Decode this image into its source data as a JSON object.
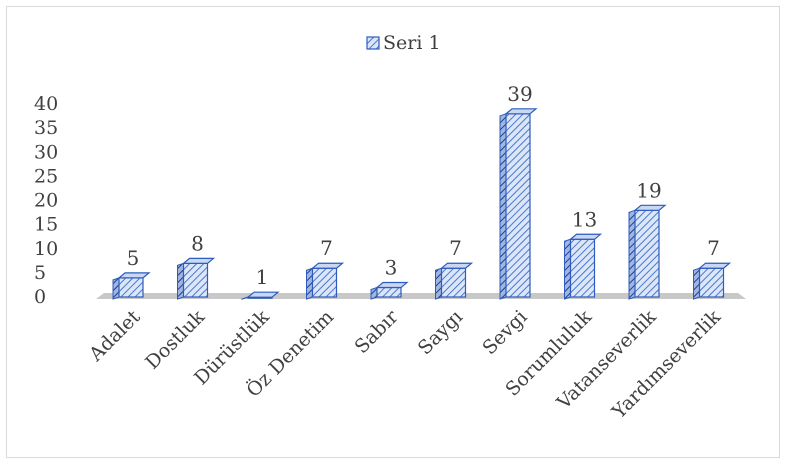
{
  "chart_data": {
    "type": "bar",
    "title": "",
    "xlabel": "",
    "ylabel": "",
    "categories": [
      "Adalet",
      "Dostluk",
      "Dürüstlük",
      "Öz Denetim",
      "Sabır",
      "Saygı",
      "Sevgi",
      "Sorumluluk",
      "Vatanseverlik",
      "Yardımseverlik"
    ],
    "series": [
      {
        "name": "Seri 1",
        "values": [
          5,
          8,
          1,
          7,
          3,
          7,
          39,
          13,
          19,
          7
        ]
      }
    ],
    "data_labels": [
      "5",
      "8",
      "1",
      "7",
      "3",
      "7",
      "39",
      "13",
      "19",
      "7"
    ],
    "ylim": [
      0,
      40
    ],
    "yticks": [
      "0",
      "5",
      "10",
      "15",
      "20",
      "25",
      "30",
      "35",
      "40"
    ],
    "grid": false,
    "legend_position": "top-center",
    "style": "3d-column-hatched",
    "colors": {
      "bar_fill": "#c9d8f2",
      "bar_edge": "#2e5bbd",
      "bar_hatch": "#3d6fd1",
      "floor": "#c8c8c8"
    }
  }
}
